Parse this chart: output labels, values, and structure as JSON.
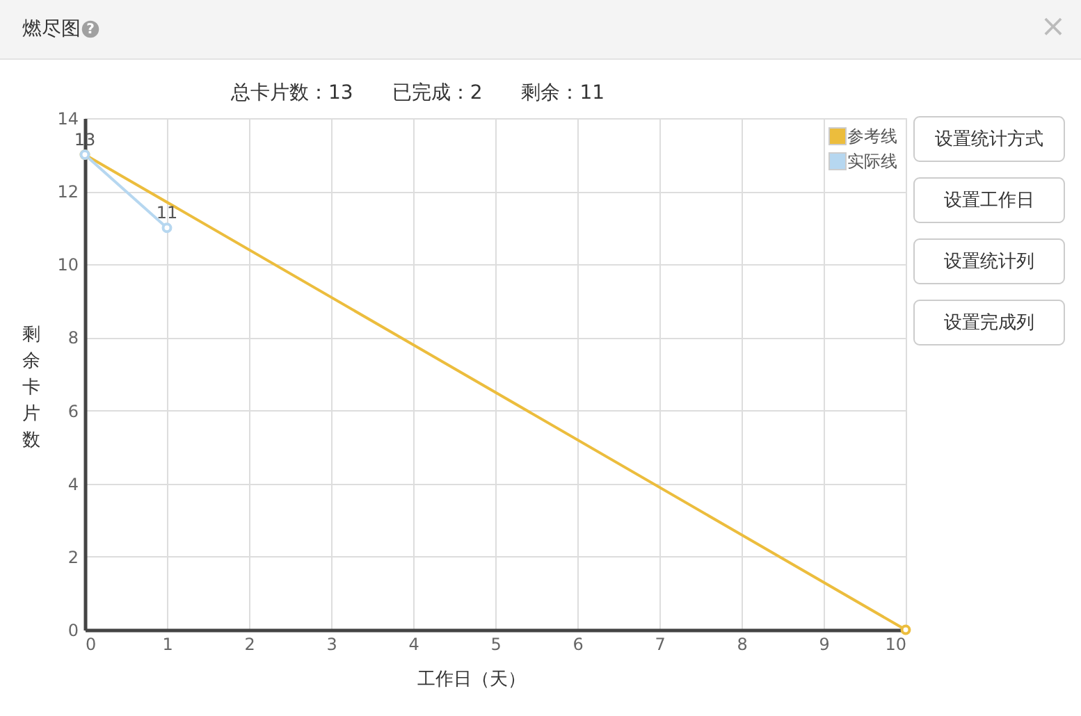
{
  "chart_data": {
    "type": "line",
    "title": "燃尽图",
    "subtitle": "总卡片数：13　　已完成：2　　剩余：11",
    "xlabel": "工作日（天）",
    "ylabel": "剩余卡片数",
    "xlim": [
      0,
      10
    ],
    "xticks": [
      0,
      1,
      2,
      3,
      4,
      5,
      6,
      7,
      8,
      9,
      10
    ],
    "ylim": [
      0,
      14
    ],
    "yticks": [
      0,
      2,
      4,
      6,
      8,
      10,
      12,
      14
    ],
    "grid": true,
    "legend": "top right",
    "marker": "circle",
    "line_style": "solid",
    "series": [
      {
        "name": "参考线",
        "color": "#ecbd3d",
        "x": [
          0,
          10
        ],
        "values": [
          13,
          0
        ]
      },
      {
        "name": "实际线",
        "color": "#b6d7f0",
        "x": [
          0,
          1
        ],
        "values": [
          13,
          11
        ],
        "value_labels": [
          "13",
          "11"
        ]
      }
    ],
    "annotations": [
      "?",
      "×",
      "设置统计方式",
      "设置工作日",
      "设置统计列",
      "设置完成列"
    ]
  }
}
